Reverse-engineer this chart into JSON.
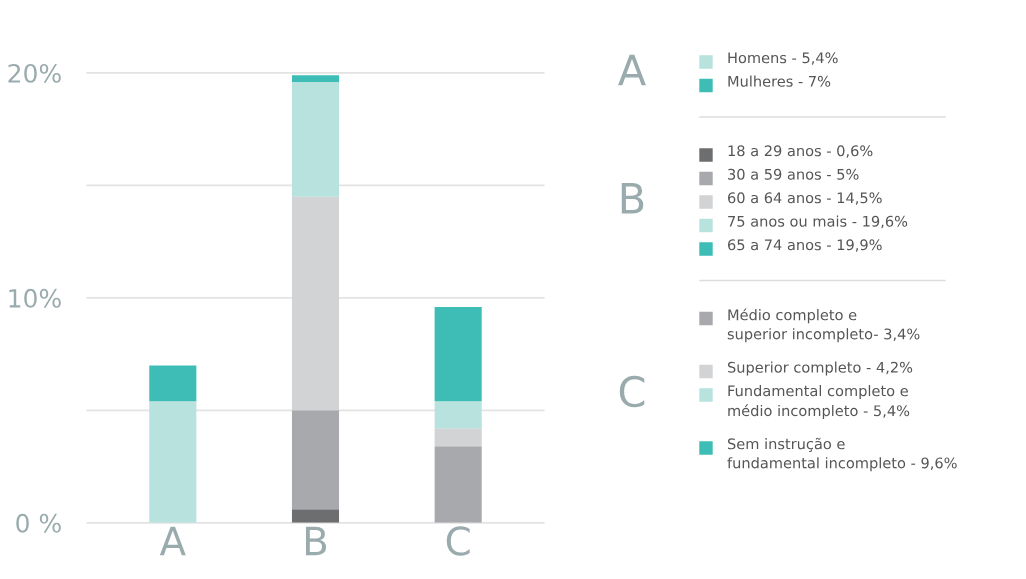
{
  "chart_data": {
    "type": "bar",
    "stacked": true,
    "categories": [
      "A",
      "B",
      "C"
    ],
    "series": [
      {
        "name": "Homens - 5,4%",
        "color": "#b8e2de",
        "values": [
          5.4,
          null,
          null
        ]
      },
      {
        "name": "Mulheres - 7%",
        "color": "#3dbdb5",
        "values": [
          1.6,
          null,
          null
        ]
      },
      {
        "name": "18 a 29 anos - 0,6%",
        "color": "#6d6e70",
        "values": [
          null,
          0.6,
          null
        ]
      },
      {
        "name": "30 a 59 anos - 5%",
        "color": "#a7a9ac",
        "values": [
          null,
          4.4,
          null
        ]
      },
      {
        "name": "60 a 64 anos - 14,5%",
        "color": "#d1d3d4",
        "values": [
          null,
          9.5,
          null
        ]
      },
      {
        "name": "75 anos ou mais - 19,6%",
        "color": "#b8e2de",
        "values": [
          null,
          5.1,
          null
        ]
      },
      {
        "name": "65 a 74 anos - 19,9%",
        "color": "#3dbdb5",
        "values": [
          null,
          0.3,
          null
        ]
      },
      {
        "name": "Médio completo e\nsuperior incompleto- 3,4%",
        "color": "#a7a9ac",
        "values": [
          null,
          null,
          3.4
        ]
      },
      {
        "name": "Superior completo - 4,2%",
        "color": "#d1d3d4",
        "values": [
          null,
          null,
          0.8
        ]
      },
      {
        "name": "Fundamental completo e\nmédio incompleto - 5,4%",
        "color": "#b8e2de",
        "values": [
          null,
          null,
          1.2
        ]
      },
      {
        "name": "Sem instrução e\nfundamental incompleto - 9,6%",
        "color": "#3dbdb5",
        "values": [
          null,
          null,
          4.2
        ]
      }
    ],
    "ylim": [
      0,
      20
    ],
    "yticks": [
      {
        "value": 0,
        "label": "0 %"
      },
      {
        "value": 5,
        "label": null
      },
      {
        "value": 10,
        "label": "10%"
      },
      {
        "value": 15,
        "label": null
      },
      {
        "value": 20,
        "label": "20%"
      }
    ],
    "grid": "y",
    "legend": "right"
  }
}
